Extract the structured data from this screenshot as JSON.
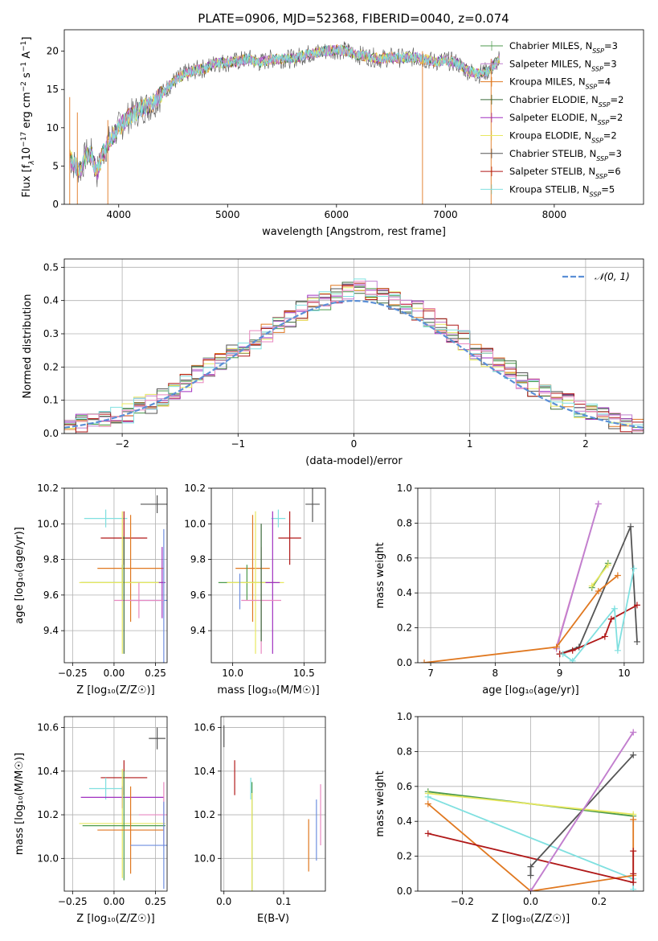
{
  "figure_title": "PLATE=0906, MJD=52368, FIBERID=0040, z=0.074",
  "colors": {
    "chabrier_miles": "#4c9a4c",
    "salpeter_miles": "#c080d0",
    "kroupa_miles": "#e07820",
    "chabrier_elodie": "#3a6a3a",
    "salpeter_elodie": "#a030c0",
    "kroupa_elodie": "#e8e860",
    "chabrier_stelib": "#555555",
    "salpeter_stelib": "#b01818",
    "kroupa_stelib": "#80e0e0",
    "extra_blue": "#6f8fe0",
    "extra_pink": "#e888c0",
    "gaussian": "#5b8fd6"
  },
  "chart_data": [
    {
      "id": "spectrum",
      "type": "line",
      "title": "PLATE=0906, MJD=52368, FIBERID=0040, z=0.074",
      "xlabel": "wavelength [Angstrom, rest frame]",
      "ylabel_parts": {
        "a": "Flux [f",
        "b": "λ",
        "c": "10",
        "d": "−17",
        "e": " erg cm",
        "f": "−2",
        "g": " s",
        "h": "−1",
        "i": " A",
        "j": "−1",
        "k": "]"
      },
      "xlim": [
        3500,
        8820
      ],
      "ylim": [
        0,
        22.8
      ],
      "xticks": [
        4000,
        5000,
        6000,
        7000,
        8000
      ],
      "yticks": [
        0,
        5,
        10,
        15,
        20
      ],
      "x": [
        3550,
        3600,
        3650,
        3700,
        3750,
        3800,
        3850,
        3900,
        3950,
        4000,
        4100,
        4200,
        4300,
        4400,
        4500,
        4600,
        4700,
        4800,
        4900,
        5000,
        5100,
        5200,
        5300,
        5400,
        5500,
        5600,
        5700,
        5800,
        5900,
        6000,
        6100,
        6200,
        6300,
        6400,
        6500,
        6600,
        6700,
        6800,
        6900,
        7000,
        7100,
        7200,
        7300,
        7400,
        7500
      ],
      "y": [
        6,
        5,
        4.5,
        6.5,
        6.5,
        4,
        6.5,
        8,
        9,
        10,
        11.5,
        12.5,
        13,
        14.5,
        16,
        17,
        17.5,
        17.8,
        18.5,
        18.5,
        18.7,
        19,
        18.5,
        19,
        19,
        19,
        19.5,
        19.8,
        20,
        20.2,
        20,
        19.5,
        19.3,
        19,
        19.2,
        19.1,
        19.2,
        19,
        18.6,
        18.8,
        18.5,
        17.5,
        17,
        17.5,
        19
      ],
      "series": [
        {
          "name": "Chabrier MILES, N",
          "sub": "SSP",
          "tail": "=3",
          "color_key": "chabrier_miles"
        },
        {
          "name": "Salpeter MILES, N",
          "sub": "SSP",
          "tail": "=3",
          "color_key": "salpeter_miles"
        },
        {
          "name": "Kroupa MILES, N",
          "sub": "SSP",
          "tail": "=4",
          "color_key": "kroupa_miles"
        },
        {
          "name": "Chabrier ELODIE, N",
          "sub": "SSP",
          "tail": "=2",
          "color_key": "chabrier_elodie"
        },
        {
          "name": "Salpeter ELODIE, N",
          "sub": "SSP",
          "tail": "=2",
          "color_key": "salpeter_elodie"
        },
        {
          "name": "Kroupa ELODIE, N",
          "sub": "SSP",
          "tail": "=2",
          "color_key": "kroupa_elodie"
        },
        {
          "name": "Chabrier STELIB, N",
          "sub": "SSP",
          "tail": "=3",
          "color_key": "chabrier_stelib"
        },
        {
          "name": "Salpeter STELIB, N",
          "sub": "SSP",
          "tail": "=6",
          "color_key": "salpeter_stelib"
        },
        {
          "name": "Kroupa STELIB, N",
          "sub": "SSP",
          "tail": "=5",
          "color_key": "kroupa_stelib"
        }
      ]
    },
    {
      "id": "residuals",
      "type": "histogram",
      "xlabel": "(data-model)/error",
      "ylabel": "Normed distribution",
      "xlim": [
        -2.5,
        2.5
      ],
      "ylim": [
        0,
        0.525
      ],
      "xticks": [
        -2,
        -1,
        0,
        1,
        2
      ],
      "xtick_labels": [
        "−2",
        "−1",
        "0",
        "1",
        "2"
      ],
      "yticks": [
        0.0,
        0.1,
        0.2,
        0.3,
        0.4,
        0.5
      ],
      "ytick_labels": [
        "0.0",
        "0.1",
        "0.2",
        "0.3",
        "0.4",
        "0.5"
      ],
      "grid": true,
      "legend_position": "top-right",
      "gaussian_label": "𝒩(0, 1)",
      "bin_edges_start": -2.5,
      "bin_width": 0.1,
      "histogram_base": [
        0.02,
        0.03,
        0.04,
        0.05,
        0.05,
        0.06,
        0.08,
        0.09,
        0.11,
        0.13,
        0.15,
        0.18,
        0.2,
        0.22,
        0.24,
        0.26,
        0.28,
        0.3,
        0.33,
        0.35,
        0.37,
        0.39,
        0.4,
        0.42,
        0.43,
        0.44,
        0.43,
        0.42,
        0.4,
        0.39,
        0.37,
        0.35,
        0.33,
        0.3,
        0.28,
        0.25,
        0.23,
        0.21,
        0.19,
        0.16,
        0.14,
        0.12,
        0.1,
        0.09,
        0.07,
        0.06,
        0.05,
        0.04,
        0.03,
        0.02
      ]
    },
    {
      "id": "age_vs_Z",
      "type": "errorbar",
      "xlabel": "Z [log₁₀(Z/Z☉)]",
      "ylabel": "age  [log₁₀(age/yr)]",
      "xlim": [
        -0.3,
        0.32
      ],
      "ylim": [
        9.22,
        10.2
      ],
      "xticks": [
        -0.25,
        0.0,
        0.25
      ],
      "xtick_labels": [
        "−0.25",
        "0.00",
        "0.25"
      ],
      "yticks": [
        9.4,
        9.6,
        9.8,
        10.0,
        10.2
      ],
      "ytick_labels": [
        "9.4",
        "9.6",
        "9.8",
        "10.0",
        "10.2"
      ],
      "grid": true,
      "points": [
        {
          "color_key": "chabrier_stelib",
          "x": 0.26,
          "y": 10.11,
          "xerr": 0.1,
          "yerr": 0.05
        },
        {
          "color_key": "kroupa_stelib",
          "x": -0.05,
          "y": 10.03,
          "xerr": 0.13,
          "yerr": 0.05
        },
        {
          "color_key": "salpeter_stelib",
          "x": 0.06,
          "y": 9.92,
          "xerr": 0.14,
          "yerr": 0.15
        },
        {
          "color_key": "kroupa_miles",
          "x": 0.1,
          "y": 9.75,
          "xerr": 0.2,
          "yerr": 0.3
        },
        {
          "color_key": "chabrier_miles",
          "x": 0.05,
          "y": 9.67,
          "xerr": 0.25,
          "yerr": 0.1
        },
        {
          "color_key": "kroupa_elodie",
          "x": 0.05,
          "y": 9.67,
          "xerr": 0.26,
          "yerr": 0.4
        },
        {
          "color_key": "salpeter_elodie",
          "x": 0.29,
          "y": 9.67,
          "xerr": 0.02,
          "yerr": 0.2
        },
        {
          "color_key": "extra_blue",
          "x": 0.3,
          "y": 9.57,
          "xerr": 0.2,
          "yerr": 0.4
        },
        {
          "color_key": "extra_pink",
          "x": 0.15,
          "y": 9.57,
          "xerr": 0.15,
          "yerr": 0.1
        },
        {
          "color_key": "chabrier_elodie",
          "x": 0.06,
          "y": 9.6,
          "xerr": 0.0,
          "yerr": 0.33
        }
      ]
    },
    {
      "id": "age_vs_mass",
      "type": "errorbar",
      "xlabel": "mass [log₁₀(M/M☉)]",
      "ylabel": "",
      "xlim": [
        9.85,
        10.65
      ],
      "ylim": [
        9.22,
        10.2
      ],
      "xticks": [
        10.0,
        10.5
      ],
      "xtick_labels": [
        "10.0",
        "10.5"
      ],
      "yticks": [
        9.4,
        9.6,
        9.8,
        10.0,
        10.2
      ],
      "ytick_labels": [
        "9.4",
        "9.6",
        "9.8",
        "10.0",
        "10.2"
      ],
      "grid": true,
      "points": [
        {
          "color_key": "chabrier_stelib",
          "x": 10.56,
          "y": 10.11,
          "xerr": 0.05,
          "yerr": 0.1
        },
        {
          "color_key": "kroupa_stelib",
          "x": 10.32,
          "y": 10.03,
          "xerr": 0.05,
          "yerr": 0.05
        },
        {
          "color_key": "salpeter_stelib",
          "x": 10.4,
          "y": 9.92,
          "xerr": 0.08,
          "yerr": 0.15
        },
        {
          "color_key": "kroupa_miles",
          "x": 10.14,
          "y": 9.75,
          "xerr": 0.12,
          "yerr": 0.3
        },
        {
          "color_key": "chabrier_miles",
          "x": 10.1,
          "y": 9.67,
          "xerr": 0.2,
          "yerr": 0.1
        },
        {
          "color_key": "kroupa_elodie",
          "x": 10.16,
          "y": 9.67,
          "xerr": 0.2,
          "yerr": 0.4
        },
        {
          "color_key": "salpeter_elodie",
          "x": 10.28,
          "y": 9.67,
          "xerr": 0.05,
          "yerr": 0.4
        },
        {
          "color_key": "extra_blue",
          "x": 10.05,
          "y": 9.62,
          "xerr": 0.0,
          "yerr": 0.1
        },
        {
          "color_key": "extra_pink",
          "x": 10.2,
          "y": 9.57,
          "xerr": 0.14,
          "yerr": 0.3
        },
        {
          "color_key": "chabrier_elodie",
          "x": 10.2,
          "y": 9.67,
          "xerr": 0.0,
          "yerr": 0.33
        }
      ]
    },
    {
      "id": "weight_vs_age",
      "type": "line",
      "xlabel": "age  [log₁₀(age/yr)]",
      "ylabel": "mass weight",
      "xlim": [
        6.8,
        10.3
      ],
      "ylim": [
        0,
        1.0
      ],
      "xticks": [
        7,
        8,
        9,
        10
      ],
      "xtick_labels": [
        "7",
        "8",
        "9",
        "10"
      ],
      "yticks": [
        0.0,
        0.2,
        0.4,
        0.6,
        0.8,
        1.0
      ],
      "ytick_labels": [
        "0.0",
        "0.2",
        "0.4",
        "0.6",
        "0.8",
        "1.0"
      ],
      "grid": true,
      "series": [
        {
          "color_key": "extra_pink",
          "x": [
            8.95,
            9.6
          ],
          "y": [
            0.09,
            0.91
          ]
        },
        {
          "color_key": "salpeter_miles",
          "x": [
            8.95,
            9.6
          ],
          "y": [
            0.08,
            0.91
          ]
        },
        {
          "color_key": "chabrier_stelib",
          "x": [
            9.0,
            9.3,
            10.1,
            10.2
          ],
          "y": [
            0.05,
            0.09,
            0.78,
            0.12
          ]
        },
        {
          "color_key": "chabrier_miles",
          "x": [
            9.5,
            9.75
          ],
          "y": [
            0.43,
            0.57
          ]
        },
        {
          "color_key": "kroupa_elodie",
          "x": [
            9.5,
            9.75
          ],
          "y": [
            0.44,
            0.56
          ]
        },
        {
          "color_key": "kroupa_miles",
          "x": [
            6.9,
            8.95,
            9.6,
            9.9
          ],
          "y": [
            0.0,
            0.09,
            0.41,
            0.5
          ]
        },
        {
          "color_key": "salpeter_stelib",
          "x": [
            9.0,
            9.2,
            9.7,
            9.8,
            10.2
          ],
          "y": [
            0.05,
            0.07,
            0.15,
            0.25,
            0.33
          ]
        },
        {
          "color_key": "kroupa_stelib",
          "x": [
            9.05,
            9.2,
            9.85,
            9.9,
            10.15
          ],
          "y": [
            0.05,
            0.01,
            0.31,
            0.07,
            0.54
          ]
        }
      ]
    },
    {
      "id": "mass_vs_Z",
      "type": "errorbar",
      "xlabel": "Z [log₁₀(Z/Z☉)]",
      "ylabel": "mass [log₁₀(M/M☉)]",
      "xlim": [
        -0.3,
        0.32
      ],
      "ylim": [
        9.85,
        10.65
      ],
      "xticks": [
        -0.25,
        0.0,
        0.25
      ],
      "xtick_labels": [
        "−0.25",
        "0.00",
        "0.25"
      ],
      "yticks": [
        10.0,
        10.2,
        10.4,
        10.6
      ],
      "ytick_labels": [
        "10.0",
        "10.2",
        "10.4",
        "10.6"
      ],
      "grid": true,
      "points": [
        {
          "color_key": "chabrier_stelib",
          "x": 0.26,
          "y": 10.55,
          "xerr": 0.05,
          "yerr": 0.05
        },
        {
          "color_key": "salpeter_stelib",
          "x": 0.06,
          "y": 10.37,
          "xerr": 0.14,
          "yerr": 0.08
        },
        {
          "color_key": "kroupa_stelib",
          "x": -0.05,
          "y": 10.32,
          "xerr": 0.1,
          "yerr": 0.05
        },
        {
          "color_key": "salpeter_elodie",
          "x": 0.05,
          "y": 10.28,
          "xerr": 0.25,
          "yerr": 0.05
        },
        {
          "color_key": "extra_pink",
          "x": 0.3,
          "y": 10.2,
          "xerr": 0.15,
          "yerr": 0.15
        },
        {
          "color_key": "kroupa_elodie",
          "x": 0.05,
          "y": 10.16,
          "xerr": 0.26,
          "yerr": 0.25
        },
        {
          "color_key": "chabrier_miles",
          "x": 0.06,
          "y": 10.15,
          "xerr": 0.25,
          "yerr": 0.25
        },
        {
          "color_key": "kroupa_miles",
          "x": 0.1,
          "y": 10.13,
          "xerr": 0.2,
          "yerr": 0.2
        },
        {
          "color_key": "extra_blue",
          "x": 0.3,
          "y": 10.06,
          "xerr": 0.2,
          "yerr": 0.2
        }
      ]
    },
    {
      "id": "mass_vs_ebv",
      "type": "errorbar",
      "xlabel": "E(B-V)",
      "ylabel": "",
      "xlim": [
        -0.005,
        0.17
      ],
      "ylim": [
        9.85,
        10.65
      ],
      "xticks": [
        0.0,
        0.1
      ],
      "xtick_labels": [
        "0.0",
        "0.1"
      ],
      "yticks": [
        10.0,
        10.2,
        10.4,
        10.6
      ],
      "ytick_labels": [
        "10.0",
        "10.2",
        "10.4",
        "10.6"
      ],
      "grid": true,
      "points": [
        {
          "color_key": "chabrier_stelib",
          "x": 0.0,
          "y": 10.56,
          "xerr": 0.0,
          "yerr": 0.05
        },
        {
          "color_key": "salpeter_stelib",
          "x": 0.018,
          "y": 10.37,
          "xerr": 0.0,
          "yerr": 0.08
        },
        {
          "color_key": "kroupa_stelib",
          "x": 0.045,
          "y": 10.32,
          "xerr": 0.0,
          "yerr": 0.05
        },
        {
          "color_key": "chabrier_miles",
          "x": 0.047,
          "y": 10.1,
          "xerr": 0.0,
          "yerr": 0.25
        },
        {
          "color_key": "kroupa_elodie",
          "x": 0.047,
          "y": 10.05,
          "xerr": 0.0,
          "yerr": 0.25
        },
        {
          "color_key": "kroupa_miles",
          "x": 0.142,
          "y": 10.06,
          "xerr": 0.0,
          "yerr": 0.12
        },
        {
          "color_key": "extra_blue",
          "x": 0.155,
          "y": 10.13,
          "xerr": 0.0,
          "yerr": 0.14
        },
        {
          "color_key": "extra_pink",
          "x": 0.162,
          "y": 10.2,
          "xerr": 0.0,
          "yerr": 0.14
        }
      ]
    },
    {
      "id": "weight_vs_Z",
      "type": "line",
      "xlabel": "Z [log₁₀(Z/Z☉)]",
      "ylabel": "mass weight",
      "xlim": [
        -0.33,
        0.33
      ],
      "ylim": [
        0,
        1.0
      ],
      "xticks": [
        -0.2,
        0.0,
        0.2
      ],
      "xtick_labels": [
        "−0.2",
        "0.0",
        "0.2"
      ],
      "yticks": [
        0.0,
        0.2,
        0.4,
        0.6,
        0.8,
        1.0
      ],
      "ytick_labels": [
        "0.0",
        "0.2",
        "0.4",
        "0.6",
        "0.8",
        "1.0"
      ],
      "grid": true,
      "series": [
        {
          "color_key": "chabrier_miles",
          "x": [
            -0.3,
            0.3
          ],
          "y": [
            0.57,
            0.43
          ]
        },
        {
          "color_key": "kroupa_elodie",
          "x": [
            -0.3,
            0.3
          ],
          "y": [
            0.56,
            0.44
          ]
        },
        {
          "color_key": "kroupa_stelib",
          "x": [
            -0.3,
            0.3,
            0.3
          ],
          "y": [
            0.54,
            0.07,
            0.01
          ]
        },
        {
          "color_key": "kroupa_miles",
          "x": [
            -0.3,
            0.0,
            0.3,
            0.3
          ],
          "y": [
            0.5,
            0.0,
            0.09,
            0.41
          ]
        },
        {
          "color_key": "salpeter_stelib",
          "x": [
            -0.3,
            0.3,
            0.3,
            0.3
          ],
          "y": [
            0.33,
            0.05,
            0.1,
            0.23
          ]
        },
        {
          "color_key": "chabrier_stelib",
          "x": [
            0.0,
            0.0,
            0.3
          ],
          "y": [
            0.09,
            0.14,
            0.78
          ]
        },
        {
          "color_key": "extra_pink",
          "x": [
            0.0,
            0.3
          ],
          "y": [
            0.0,
            0.91
          ]
        },
        {
          "color_key": "salpeter_miles",
          "x": [
            0.0,
            0.3
          ],
          "y": [
            0.0,
            0.91
          ]
        }
      ]
    }
  ]
}
